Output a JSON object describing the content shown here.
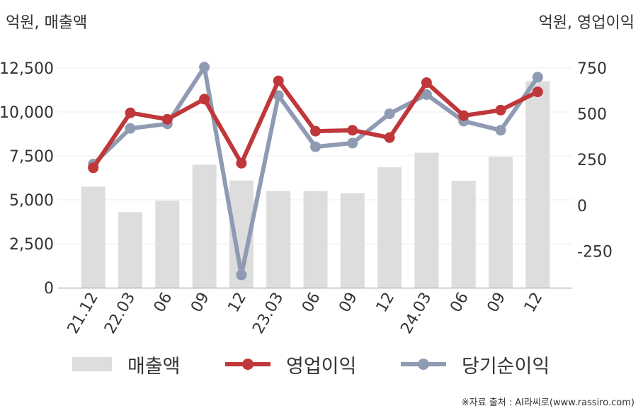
{
  "unit_left": "억원, 매출액",
  "unit_right": "억원, 영업이익",
  "source": "※자료 출처 : AI라씨로(www.rassiro.com)",
  "colors": {
    "revenue": "#dddddd",
    "operating_profit": "#c0373a",
    "net_income": "#8f9bb3",
    "axis": "#bbbbbb",
    "grid": "#ececec"
  },
  "legend": [
    {
      "label": "매출액",
      "icon": "bar-swatch"
    },
    {
      "label": "영업이익",
      "icon": "line-marker-swatch"
    },
    {
      "label": "당기순이익",
      "icon": "line-marker-swatch"
    }
  ],
  "chart_data": {
    "type": "bar+line",
    "categories": [
      "21.12",
      "22.03",
      "06",
      "09",
      "12",
      "23.03",
      "06",
      "09",
      "12",
      "24.03",
      "06",
      "09",
      "12"
    ],
    "y_left": {
      "range": [
        0,
        12500
      ],
      "ticks": [
        "0",
        "2,500",
        "5,000",
        "7,500",
        "10,000",
        "12,500"
      ],
      "tick_values": [
        0,
        2500,
        5000,
        7500,
        10000,
        12500
      ]
    },
    "y_right": {
      "range": [
        -450,
        750
      ],
      "ticks": [
        "-250",
        "0",
        "250",
        "500",
        "750"
      ],
      "tick_values": [
        -250,
        0,
        250,
        500,
        750
      ]
    },
    "grid": true,
    "legend_position": "bottom",
    "series": [
      {
        "name": "매출액",
        "type": "bar",
        "axis": "left",
        "values": [
          5750,
          4300,
          4950,
          7000,
          6100,
          5500,
          5500,
          5380,
          6850,
          7680,
          6080,
          7450,
          11750
        ]
      },
      {
        "name": "영업이익",
        "type": "line",
        "axis": "right",
        "values": [
          205,
          505,
          470,
          580,
          230,
          680,
          405,
          410,
          370,
          670,
          490,
          520,
          620
        ]
      },
      {
        "name": "당기순이익",
        "type": "line",
        "axis": "right",
        "values": [
          225,
          420,
          445,
          755,
          -380,
          600,
          320,
          340,
          500,
          605,
          460,
          410,
          700
        ]
      }
    ]
  }
}
